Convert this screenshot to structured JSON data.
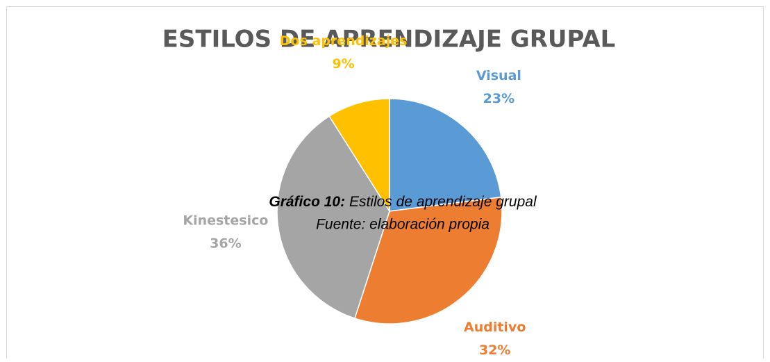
{
  "chart_data": {
    "type": "pie",
    "title": "ESTILOS DE APRENDIZAJE GRUPAL",
    "categories": [
      "Visual",
      "Auditivo",
      "Kinestesico",
      "Dos aprendizajes"
    ],
    "values": [
      23,
      32,
      36,
      9
    ],
    "value_labels": [
      "23%",
      "32%",
      "36%",
      "9%"
    ],
    "colors": [
      "#5b9bd5",
      "#ed7d31",
      "#a5a5a5",
      "#ffc000"
    ]
  },
  "caption": {
    "label": "Gráfico 10:",
    "text": "Estilos de aprendizaje grupal",
    "source": "Fuente: elaboración propia"
  }
}
